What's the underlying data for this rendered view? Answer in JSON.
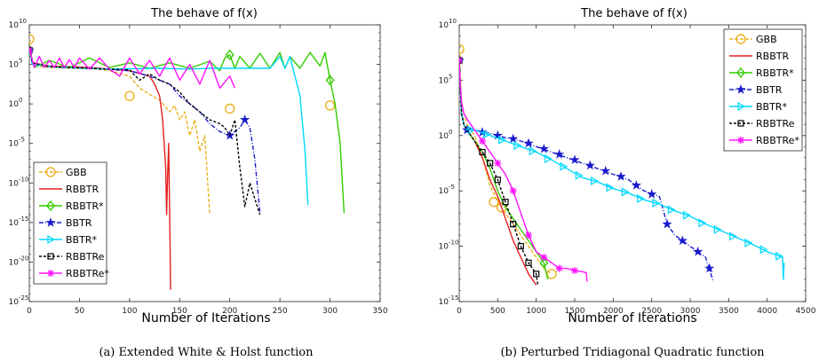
{
  "chart_data": [
    {
      "type": "line",
      "title": "The behave of f(x)",
      "xlabel": "Number of Iterations",
      "ylabel": "",
      "xlim": [
        0,
        350
      ],
      "ylim_log10": [
        -25,
        10
      ],
      "yscale": "log",
      "xticks": [
        0,
        50,
        100,
        150,
        200,
        250,
        300,
        350
      ],
      "yticks_exp": [
        -25,
        -20,
        -15,
        -10,
        -5,
        0,
        5,
        10
      ],
      "legend_position": "bottom-left",
      "caption": "(a)  Extended White & Holst function",
      "series": [
        {
          "name": "GBB",
          "color": "#edb120",
          "dash": "4,2",
          "marker": "circle",
          "x": [
            0,
            1,
            3,
            10,
            40,
            60,
            80,
            100,
            110,
            120,
            130,
            140,
            145,
            150,
            155,
            160,
            165,
            170,
            175,
            180
          ],
          "y_log10": [
            8.2,
            6.8,
            5.4,
            4.7,
            4.5,
            4.5,
            4.2,
            3.5,
            2.0,
            1.2,
            0.5,
            -1.0,
            -0.2,
            -2.0,
            -1.0,
            -4.0,
            -2.0,
            -6.0,
            -4.0,
            -14.0
          ],
          "marker_x": [
            0,
            100,
            200,
            300
          ],
          "marker_y_log10": [
            8.2,
            1.0,
            -0.6,
            -0.2
          ]
        },
        {
          "name": "RBBTR",
          "color": "#e52020",
          "dash": "",
          "marker": "none",
          "x": [
            0,
            1,
            3,
            20,
            60,
            100,
            120,
            125,
            130,
            133,
            136,
            137,
            138,
            139,
            140,
            141
          ],
          "y_log10": [
            6.8,
            6.6,
            5.2,
            4.8,
            4.6,
            4.2,
            3.5,
            2.5,
            1.0,
            -2.0,
            -8.0,
            -14.0,
            -9.0,
            -5.0,
            -14.0,
            -23.5
          ],
          "marker_x": [],
          "marker_y_log10": []
        },
        {
          "name": "RBBTR*",
          "color": "#33cc00",
          "dash": "",
          "marker": "diamond",
          "x": [
            0,
            1,
            3,
            5,
            20,
            40,
            60,
            80,
            100,
            120,
            140,
            160,
            180,
            190,
            195,
            200,
            205,
            210,
            220,
            230,
            240,
            250,
            255,
            260,
            270,
            280,
            290,
            295,
            300,
            305,
            310,
            314
          ],
          "y_log10": [
            6.8,
            6.5,
            5.4,
            4.6,
            5.5,
            4.6,
            5.8,
            4.6,
            5.2,
            4.5,
            5.2,
            4.5,
            5.4,
            4.2,
            5.8,
            6.2,
            4.5,
            6.0,
            4.5,
            6.4,
            4.5,
            6.5,
            4.5,
            6.0,
            4.5,
            6.5,
            4.8,
            6.5,
            3.0,
            0.0,
            -5.0,
            -13.8
          ],
          "marker_x": [
            0,
            200,
            300
          ],
          "marker_y_log10": [
            6.8,
            6.2,
            3.0
          ]
        },
        {
          "name": "BBTR",
          "color": "#1a1acc",
          "dash": "5,2,1,2",
          "marker": "star",
          "x": [
            0,
            1,
            3,
            20,
            60,
            100,
            120,
            140,
            150,
            160,
            170,
            180,
            190,
            200,
            210,
            215,
            220,
            225,
            230
          ],
          "y_log10": [
            6.8,
            6.5,
            5.0,
            4.7,
            4.5,
            4.2,
            3.5,
            2.5,
            1.0,
            0.0,
            -1.0,
            -2.5,
            -3.5,
            -4.0,
            -3.0,
            -2.0,
            -3.0,
            -7.0,
            -13.8
          ],
          "marker_x": [
            0,
            200,
            215
          ],
          "marker_y_log10": [
            6.8,
            -4.0,
            -2.0
          ]
        },
        {
          "name": "BBTR*",
          "color": "#00d8ff",
          "dash": "",
          "marker": "triangle-right",
          "x": [
            0,
            1,
            3,
            30,
            80,
            130,
            160,
            180,
            200,
            210,
            220,
            230,
            240,
            250,
            255,
            260,
            265,
            270,
            275,
            278
          ],
          "y_log10": [
            6.8,
            6.5,
            5.0,
            4.6,
            4.4,
            4.5,
            4.4,
            4.5,
            4.5,
            4.5,
            4.5,
            4.5,
            4.5,
            6.0,
            4.5,
            6.0,
            3.5,
            1.0,
            -6.0,
            -12.8
          ],
          "marker_x": [
            0
          ],
          "marker_y_log10": [
            6.8
          ]
        },
        {
          "name": "RBBTRe",
          "color": "#000000",
          "dash": "3,2",
          "marker": "square",
          "x": [
            0,
            1,
            3,
            20,
            60,
            100,
            110,
            120,
            130,
            140,
            150,
            160,
            170,
            180,
            190,
            195,
            200,
            205,
            210,
            215,
            220,
            225,
            230
          ],
          "y_log10": [
            6.8,
            6.5,
            5.2,
            4.7,
            4.5,
            4.3,
            3.0,
            3.8,
            3.0,
            2.5,
            1.5,
            0.0,
            -1.0,
            -2.0,
            -2.5,
            -3.0,
            -4.0,
            -2.0,
            -8.0,
            -13.0,
            -10.0,
            -12.0,
            -14.0
          ],
          "marker_x": [
            0
          ],
          "marker_y_log10": [
            6.8
          ]
        },
        {
          "name": "RBBTRe*",
          "color": "#ff10ff",
          "dash": "",
          "marker": "asterisk",
          "x": [
            0,
            1,
            3,
            5,
            10,
            15,
            20,
            25,
            30,
            35,
            40,
            45,
            50,
            60,
            70,
            80,
            90,
            100,
            110,
            120,
            130,
            140,
            150,
            160,
            170,
            180,
            190,
            200,
            205
          ],
          "y_log10": [
            6.8,
            6.6,
            5.5,
            4.6,
            6.0,
            4.6,
            5.5,
            4.6,
            5.8,
            4.6,
            5.6,
            4.6,
            5.8,
            4.4,
            5.8,
            4.4,
            3.5,
            5.8,
            3.8,
            5.5,
            3.5,
            5.8,
            3.0,
            5.0,
            2.5,
            5.5,
            2.0,
            3.5,
            2.0
          ],
          "marker_x": [
            0
          ],
          "marker_y_log10": [
            6.8
          ]
        }
      ]
    },
    {
      "type": "line",
      "title": "The behave of f(x)",
      "xlabel": "Number of Iterations",
      "ylabel": "",
      "xlim": [
        0,
        4500
      ],
      "ylim_log10": [
        -15,
        10
      ],
      "yscale": "log",
      "xticks": [
        0,
        500,
        1000,
        1500,
        2000,
        2500,
        3000,
        3500,
        4000,
        4500
      ],
      "yticks_exp": [
        -15,
        -10,
        -5,
        0,
        5,
        10
      ],
      "legend_position": "top-right",
      "caption": "(b)  Perturbed Tridiagonal Quadratic function",
      "series": [
        {
          "name": "GBB",
          "color": "#edb120",
          "dash": "4,2",
          "marker": "circle",
          "x": [
            0,
            10,
            30,
            60,
            100,
            150,
            200,
            300,
            400,
            500,
            600,
            700,
            800,
            900,
            1000,
            1100,
            1200
          ],
          "y_log10": [
            7.8,
            6.0,
            3.0,
            2.0,
            1.0,
            0.5,
            0.0,
            -2.0,
            -4.5,
            -6.0,
            -7.0,
            -8.0,
            -9.0,
            -10.0,
            -11.0,
            -12.0,
            -12.5
          ],
          "marker_x": [
            0,
            450,
            550,
            1200
          ],
          "marker_y_log10": [
            7.8,
            -6.0,
            -6.5,
            -12.5
          ]
        },
        {
          "name": "RBBTR",
          "color": "#e52020",
          "dash": "",
          "marker": "none",
          "x": [
            0,
            10,
            30,
            60,
            100,
            200,
            300,
            400,
            500,
            600,
            700,
            800,
            900,
            1000
          ],
          "y_log10": [
            6.8,
            5.0,
            2.0,
            1.0,
            0.5,
            -0.5,
            -2.0,
            -4.0,
            -5.5,
            -7.5,
            -9.5,
            -11.0,
            -12.5,
            -13.5
          ],
          "marker_x": [],
          "marker_y_log10": []
        },
        {
          "name": "RBBTR*",
          "color": "#33cc00",
          "dash": "",
          "marker": "diamond",
          "x": [
            0,
            10,
            30,
            60,
            100,
            200,
            300,
            400,
            500,
            600,
            700,
            800,
            900,
            1000,
            1100,
            1150
          ],
          "y_log10": [
            6.8,
            5.0,
            2.0,
            1.0,
            0.5,
            -0.5,
            -1.5,
            -3.0,
            -5.0,
            -6.5,
            -7.5,
            -8.5,
            -9.5,
            -10.5,
            -11.5,
            -13.0
          ],
          "marker_x": [
            0,
            1100
          ],
          "marker_y_log10": [
            6.8,
            -11.5
          ]
        },
        {
          "name": "BBTR",
          "color": "#1a1acc",
          "dash": "5,2,1,2",
          "marker": "star",
          "x": [
            0,
            10,
            30,
            60,
            100,
            200,
            400,
            600,
            800,
            1000,
            1200,
            1400,
            1600,
            1800,
            2000,
            2200,
            2400,
            2600,
            2700,
            2800,
            3000,
            3200,
            3300
          ],
          "y_log10": [
            6.8,
            5.0,
            2.0,
            1.0,
            0.5,
            0.5,
            0.2,
            -0.2,
            -0.5,
            -1.0,
            -1.5,
            -2.0,
            -2.5,
            -3.0,
            -3.5,
            -4.0,
            -5.0,
            -5.5,
            -8.0,
            -9.0,
            -10.0,
            -11.0,
            -13.2
          ],
          "marker_x": [
            0,
            100,
            300,
            500,
            700,
            900,
            1100,
            1300,
            1500,
            1700,
            1900,
            2100,
            2300,
            2500,
            2700,
            2900,
            3100,
            3250
          ],
          "marker_y_log10": [
            6.8,
            0.5,
            0.3,
            0.0,
            -0.3,
            -0.7,
            -1.2,
            -1.7,
            -2.2,
            -2.7,
            -3.2,
            -3.7,
            -4.5,
            -5.3,
            -8.0,
            -9.5,
            -10.5,
            -12.0
          ]
        },
        {
          "name": "BBTR*",
          "color": "#00d8ff",
          "dash": "",
          "marker": "triangle-right",
          "x": [
            0,
            10,
            30,
            60,
            100,
            200,
            400,
            600,
            800,
            1000,
            1200,
            1400,
            1600,
            1800,
            2000,
            2200,
            2400,
            2600,
            2800,
            3000,
            3200,
            3400,
            3600,
            3800,
            4000,
            4200,
            4210,
            4220
          ],
          "y_log10": [
            6.8,
            5.0,
            2.0,
            1.0,
            0.5,
            0.5,
            0.0,
            -0.5,
            -1.0,
            -1.5,
            -2.2,
            -3.0,
            -3.8,
            -4.2,
            -4.8,
            -5.2,
            -5.8,
            -6.2,
            -6.8,
            -7.3,
            -8.0,
            -8.6,
            -9.2,
            -9.8,
            -10.5,
            -11.0,
            -13.0,
            -11.5
          ],
          "marker_x": [
            0,
            150,
            350,
            550,
            750,
            950,
            1150,
            1350,
            1550,
            1750,
            1950,
            2150,
            2350,
            2550,
            2750,
            2950,
            3150,
            3350,
            3550,
            3750,
            3950,
            4150
          ],
          "marker_y_log10": [
            6.8,
            0.5,
            0.1,
            -0.4,
            -0.9,
            -1.4,
            -2.1,
            -2.8,
            -3.6,
            -4.1,
            -4.7,
            -5.1,
            -5.7,
            -6.1,
            -6.7,
            -7.2,
            -7.9,
            -8.5,
            -9.1,
            -9.7,
            -10.3,
            -10.9
          ]
        },
        {
          "name": "RBBTRe",
          "color": "#000000",
          "dash": "3,2",
          "marker": "square",
          "x": [
            0,
            10,
            30,
            60,
            100,
            200,
            300,
            400,
            500,
            600,
            700,
            800,
            900,
            1000,
            1020
          ],
          "y_log10": [
            6.8,
            5.0,
            2.0,
            1.0,
            0.5,
            -0.5,
            -1.5,
            -2.5,
            -4.0,
            -6.0,
            -8.0,
            -10.0,
            -11.5,
            -12.5,
            -13.5
          ],
          "marker_x": [
            0,
            300,
            400,
            500,
            600,
            700,
            800,
            900,
            1000
          ],
          "marker_y_log10": [
            6.8,
            -1.5,
            -2.5,
            -4.0,
            -6.0,
            -8.0,
            -10.0,
            -11.5,
            -12.5
          ]
        },
        {
          "name": "RBBTRe*",
          "color": "#ff10ff",
          "dash": "",
          "marker": "asterisk",
          "x": [
            0,
            10,
            30,
            60,
            100,
            200,
            300,
            400,
            500,
            600,
            700,
            800,
            900,
            1000,
            1100,
            1200,
            1300,
            1400,
            1500,
            1600,
            1650,
            1660
          ],
          "y_log10": [
            6.8,
            5.0,
            3.0,
            2.0,
            1.5,
            0.5,
            -0.5,
            -1.5,
            -2.5,
            -3.5,
            -5.0,
            -7.0,
            -9.0,
            -10.5,
            -11.0,
            -11.5,
            -12.0,
            -12.0,
            -12.2,
            -12.3,
            -12.4,
            -13.2
          ],
          "marker_x": [
            0,
            300,
            500,
            700,
            900,
            1100,
            1300,
            1500
          ],
          "marker_y_log10": [
            6.8,
            -0.5,
            -2.5,
            -5.0,
            -9.0,
            -11.0,
            -12.0,
            -12.2
          ]
        }
      ]
    }
  ]
}
